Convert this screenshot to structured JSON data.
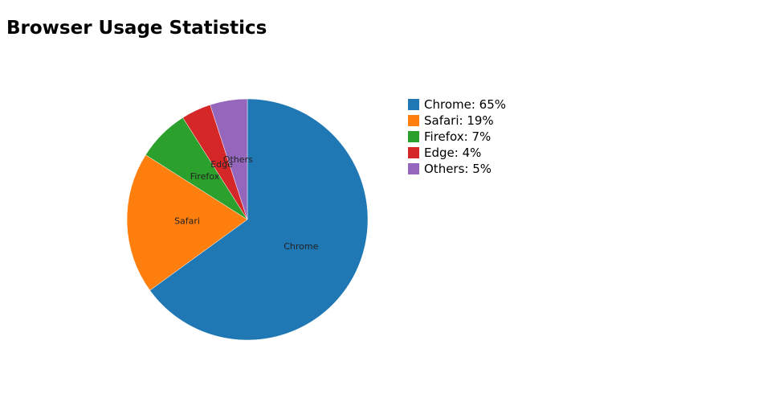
{
  "chart_data": {
    "type": "pie",
    "title": "Browser Usage Statistics",
    "categories": [
      "Chrome",
      "Safari",
      "Firefox",
      "Edge",
      "Others"
    ],
    "values": [
      65,
      19,
      7,
      4,
      5
    ],
    "colors": [
      "#1f77b4",
      "#ff7f0e",
      "#2ca02c",
      "#d62728",
      "#9467bd"
    ],
    "legend_position": "right",
    "legend": [
      {
        "text": "Chrome: 65%",
        "color": "#1f77b4"
      },
      {
        "text": "Safari: 19%",
        "color": "#ff7f0e"
      },
      {
        "text": "Firefox: 7%",
        "color": "#2ca02c"
      },
      {
        "text": "Edge: 4%",
        "color": "#d62728"
      },
      {
        "text": "Others: 5%",
        "color": "#9467bd"
      }
    ]
  }
}
